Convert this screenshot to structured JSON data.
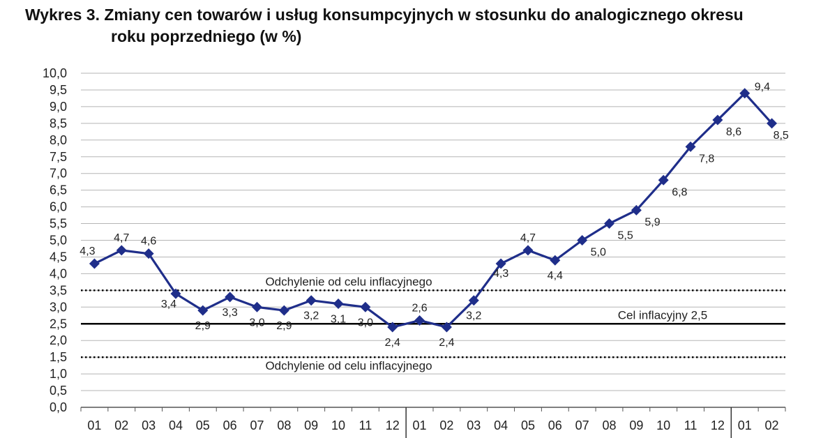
{
  "title": {
    "line1": "Wykres 3. Zmiany cen towarów i usług konsumpcyjnych w stosunku do analogicznego okresu",
    "line2": "roku poprzedniego (w %)"
  },
  "colors": {
    "series": "#1f2e8a",
    "grid": "#b5b5b5",
    "axis": "#555555",
    "target": "#000000"
  },
  "chart_data": {
    "type": "line",
    "title": "Wykres 3. Zmiany cen towarów i usług konsumpcyjnych w stosunku do analogicznego okresu roku poprzedniego (w %)",
    "xlabel": "",
    "ylabel": "",
    "ylim": [
      0,
      10
    ],
    "ystep": 0.5,
    "grid": true,
    "categories": [
      "01",
      "02",
      "03",
      "04",
      "05",
      "06",
      "07",
      "08",
      "09",
      "10",
      "11",
      "12",
      "01",
      "02",
      "03",
      "04",
      "05",
      "06",
      "07",
      "08",
      "09",
      "10",
      "11",
      "12",
      "01",
      "02"
    ],
    "year_separators_after": [
      12,
      24
    ],
    "series": [
      {
        "name": "",
        "values": [
          4.3,
          4.7,
          4.6,
          3.4,
          2.9,
          3.3,
          3.0,
          2.9,
          3.2,
          3.1,
          3.0,
          2.4,
          2.6,
          2.4,
          3.2,
          4.3,
          4.7,
          4.4,
          5.0,
          5.5,
          5.9,
          6.8,
          7.8,
          8.6,
          9.4,
          8.5
        ],
        "labels": [
          "4,3",
          "4,7",
          "4,6",
          "3,4",
          "2,9",
          "3,3",
          "3,0",
          "2,9",
          "3,2",
          "3,1",
          "3,0",
          "2,4",
          "2,6",
          "2,4",
          "3,2",
          "4,3",
          "4,7",
          "4,4",
          "5,0",
          "5,5",
          "5,9",
          "6,8",
          "7,8",
          "8,6",
          "9,4",
          "8,5"
        ],
        "label_pos": [
          "above",
          "above",
          "above",
          "below",
          "below",
          "below",
          "below",
          "below",
          "below",
          "below",
          "below",
          "below",
          "above",
          "below",
          "below",
          "below",
          "above",
          "below",
          "right",
          "right",
          "right",
          "right",
          "right",
          "right",
          "right",
          "right"
        ]
      }
    ],
    "reference_lines": [
      {
        "value": 3.5,
        "style": "dotted",
        "label": "Odchylenie od celu inflacyjnego",
        "label_side": "above"
      },
      {
        "value": 2.5,
        "style": "solid",
        "label": "Cel inflacyjny 2,5",
        "label_side": "above"
      },
      {
        "value": 1.5,
        "style": "dotted",
        "label": "Odchylenie od celu inflacyjnego",
        "label_side": "below"
      }
    ],
    "ytick_labels": [
      "0,0",
      "0,5",
      "1,0",
      "1,5",
      "2,0",
      "2,5",
      "3,0",
      "3,5",
      "4,0",
      "4,5",
      "5,0",
      "5,5",
      "6,0",
      "6,5",
      "7,0",
      "7,5",
      "8,0",
      "8,5",
      "9,0",
      "9,5",
      "10,0"
    ]
  }
}
